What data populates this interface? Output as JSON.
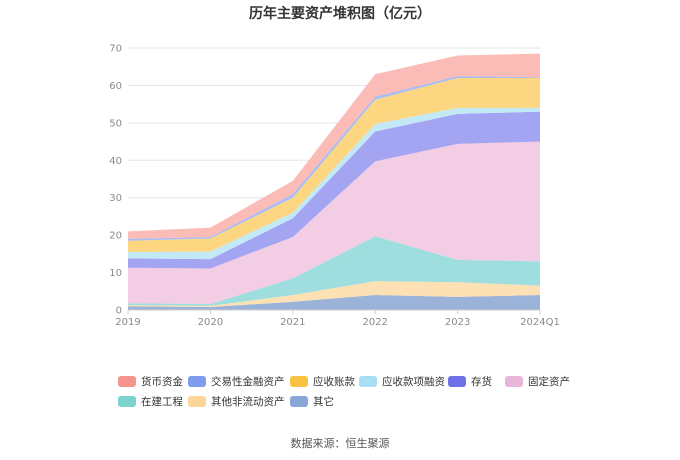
{
  "chart_data": {
    "type": "area",
    "stacked": true,
    "title": "历年主要资产堆积图（亿元）",
    "categories": [
      "2019",
      "2020",
      "2021",
      "2022",
      "2023",
      "2024Q1"
    ],
    "ylim": [
      0,
      70
    ],
    "yticks": [
      0,
      10,
      20,
      30,
      40,
      50,
      60,
      70
    ],
    "grid": true,
    "legend_position": "bottom",
    "series": [
      {
        "name": "其它",
        "color": "#9bb3d9",
        "values": [
          1.0,
          0.8,
          2.2,
          4.0,
          3.5,
          4.0
        ]
      },
      {
        "name": "其他非流动资产",
        "color": "#fde0b3",
        "values": [
          0.3,
          0.3,
          1.8,
          3.7,
          3.9,
          2.5
        ]
      },
      {
        "name": "在建工程",
        "color": "#9fdede",
        "values": [
          0.5,
          0.5,
          4.5,
          12.0,
          6.0,
          6.5
        ]
      },
      {
        "name": "固定资产",
        "color": "#f2cde3",
        "values": [
          9.5,
          9.5,
          11.0,
          20.0,
          31.0,
          32.0
        ]
      },
      {
        "name": "存货",
        "color": "#a3a5f2",
        "values": [
          2.5,
          2.5,
          5.0,
          8.0,
          8.0,
          8.0
        ]
      },
      {
        "name": "应收款项融资",
        "color": "#c4e9f6",
        "values": [
          1.7,
          2.0,
          1.5,
          2.0,
          1.6,
          1.0
        ]
      },
      {
        "name": "应收账款",
        "color": "#fcd680",
        "values": [
          3.0,
          3.5,
          4.0,
          6.5,
          8.0,
          8.0
        ]
      },
      {
        "name": "交易性金融资产",
        "color": "#aabcf4",
        "values": [
          0.5,
          0.4,
          1.0,
          0.8,
          0.5,
          0.2
        ]
      },
      {
        "name": "货币资金",
        "color": "#fbbcb7",
        "values": [
          2.0,
          2.5,
          3.5,
          6.0,
          5.5,
          6.3
        ]
      }
    ],
    "legend_order": [
      "货币资金",
      "交易性金融资产",
      "应收账款",
      "应收款项融资",
      "存货",
      "固定资产",
      "在建工程",
      "其他非流动资产",
      "其它"
    ],
    "legend_colors": {
      "货币资金": "#f5958c",
      "交易性金融资产": "#7f9cee",
      "应收账款": "#f8c343",
      "应收款项融资": "#a6dff5",
      "存货": "#6f71e6",
      "固定资产": "#e8b6d8",
      "在建工程": "#7bd3d0",
      "其他非流动资产": "#fcd597",
      "其它": "#8aa6d6"
    }
  },
  "source_text": "数据来源：恒生聚源"
}
